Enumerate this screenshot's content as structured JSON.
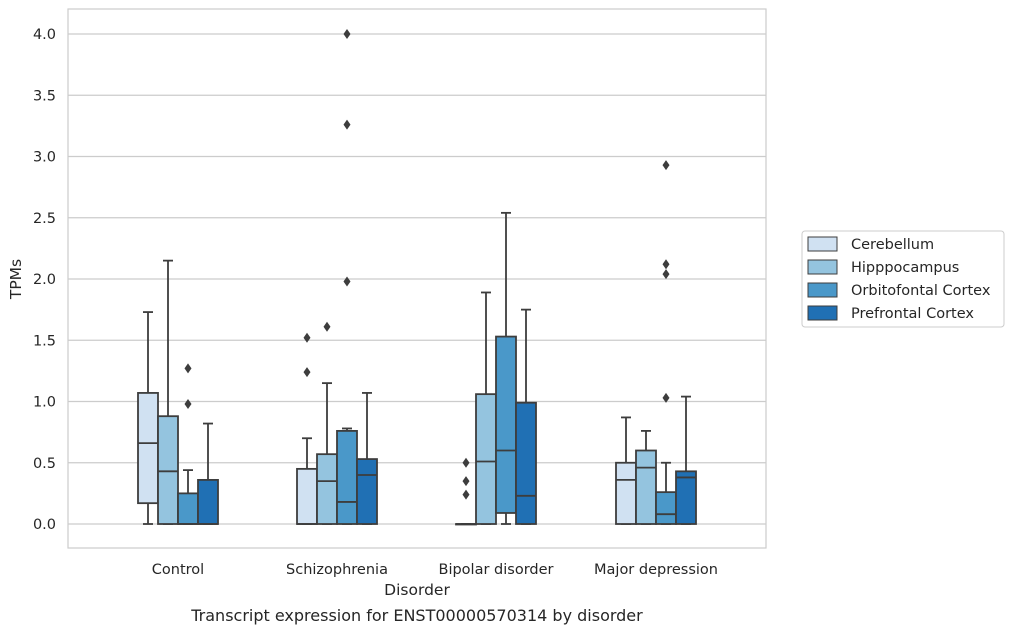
{
  "caption": "Transcript expression for ENST00000570314 by disorder",
  "chart_data": {
    "type": "box",
    "xlabel": "Disorder",
    "ylabel": "TPMs",
    "ylim": [
      -0.2,
      4.2
    ],
    "yticks": [
      "0.0",
      "0.5",
      "1.0",
      "1.5",
      "2.0",
      "2.5",
      "3.0",
      "3.5",
      "4.0"
    ],
    "grid": true,
    "legend_position": "right",
    "categories": [
      "Control",
      "Schizophrenia",
      "Bipolar disorder",
      "Major depression"
    ],
    "series": [
      {
        "name": "Cerebellum",
        "color": "#d0e1f2",
        "boxes": [
          {
            "whisker_low": 0.0,
            "q1": 0.17,
            "median": 0.66,
            "q3": 1.07,
            "whisker_high": 1.73,
            "outliers": []
          },
          {
            "whisker_low": 0.0,
            "q1": 0.0,
            "median": 0.0,
            "q3": 0.45,
            "whisker_high": 0.7,
            "outliers": [
              1.24,
              1.52
            ]
          },
          {
            "whisker_low": 0.0,
            "q1": 0.0,
            "median": 0.0,
            "q3": 0.0,
            "whisker_high": 0.0,
            "outliers": [
              0.24,
              0.35,
              0.5
            ]
          },
          {
            "whisker_low": 0.0,
            "q1": 0.0,
            "median": 0.36,
            "q3": 0.5,
            "whisker_high": 0.87,
            "outliers": []
          }
        ]
      },
      {
        "name": "Hipppocampus",
        "color": "#94c4df",
        "boxes": [
          {
            "whisker_low": 0.0,
            "q1": 0.0,
            "median": 0.43,
            "q3": 0.88,
            "whisker_high": 2.15,
            "outliers": []
          },
          {
            "whisker_low": 0.0,
            "q1": 0.0,
            "median": 0.35,
            "q3": 0.57,
            "whisker_high": 1.15,
            "outliers": [
              1.61
            ]
          },
          {
            "whisker_low": 0.0,
            "q1": 0.0,
            "median": 0.51,
            "q3": 1.06,
            "whisker_high": 1.89,
            "outliers": []
          },
          {
            "whisker_low": 0.0,
            "q1": 0.0,
            "median": 0.46,
            "q3": 0.6,
            "whisker_high": 0.76,
            "outliers": []
          }
        ]
      },
      {
        "name": "Orbitofontal Cortex",
        "color": "#4a98c9",
        "boxes": [
          {
            "whisker_low": 0.0,
            "q1": 0.0,
            "median": 0.0,
            "q3": 0.25,
            "whisker_high": 0.44,
            "outliers": [
              0.98,
              1.27
            ]
          },
          {
            "whisker_low": 0.0,
            "q1": 0.0,
            "median": 0.18,
            "q3": 0.76,
            "whisker_high": 0.78,
            "outliers": [
              1.98,
              3.26,
              4.0
            ]
          },
          {
            "whisker_low": 0.0,
            "q1": 0.09,
            "median": 0.6,
            "q3": 1.53,
            "whisker_high": 2.54,
            "outliers": []
          },
          {
            "whisker_low": 0.0,
            "q1": 0.0,
            "median": 0.08,
            "q3": 0.26,
            "whisker_high": 0.5,
            "outliers": [
              1.03,
              2.04,
              2.12,
              2.93
            ]
          }
        ]
      },
      {
        "name": "Prefrontal Cortex",
        "color": "#2070b4",
        "boxes": [
          {
            "whisker_low": 0.0,
            "q1": 0.0,
            "median": 0.0,
            "q3": 0.36,
            "whisker_high": 0.82,
            "outliers": []
          },
          {
            "whisker_low": 0.0,
            "q1": 0.0,
            "median": 0.4,
            "q3": 0.53,
            "whisker_high": 1.07,
            "outliers": []
          },
          {
            "whisker_low": 0.0,
            "q1": 0.0,
            "median": 0.23,
            "q3": 0.99,
            "whisker_high": 1.75,
            "outliers": []
          },
          {
            "whisker_low": 0.0,
            "q1": 0.0,
            "median": 0.38,
            "q3": 0.43,
            "whisker_high": 1.04,
            "outliers": []
          }
        ]
      }
    ]
  }
}
